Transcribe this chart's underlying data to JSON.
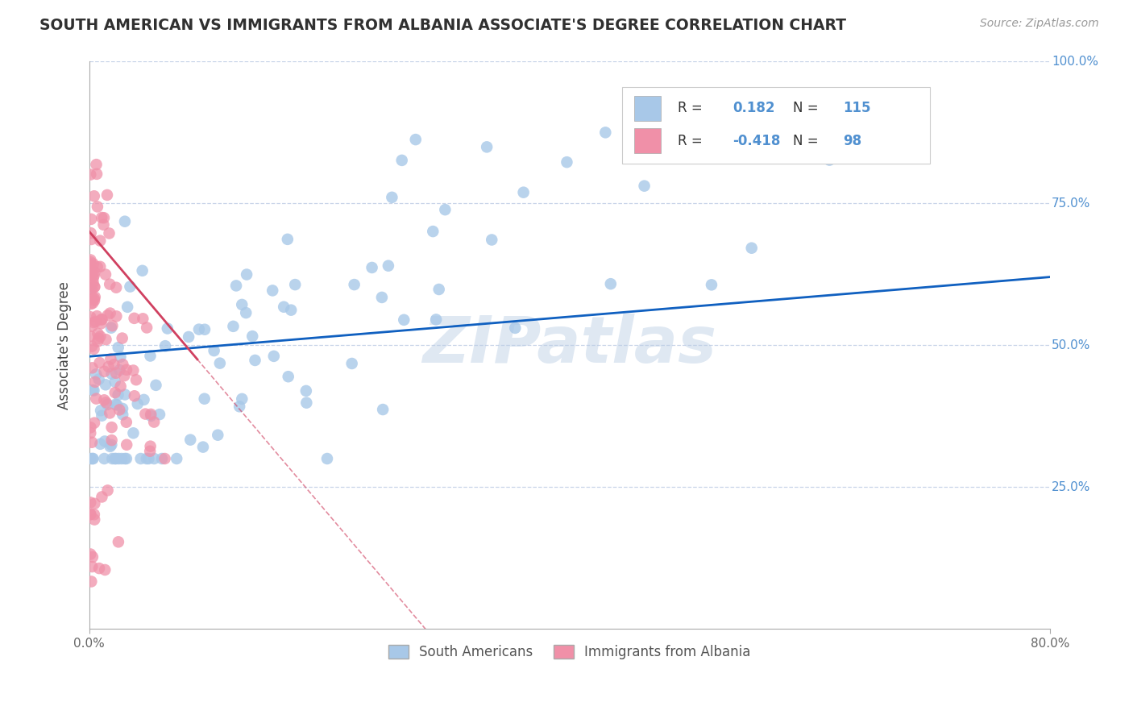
{
  "title": "SOUTH AMERICAN VS IMMIGRANTS FROM ALBANIA ASSOCIATE'S DEGREE CORRELATION CHART",
  "source": "Source: ZipAtlas.com",
  "ylabel": "Associate's Degree",
  "xlim": [
    0.0,
    0.8
  ],
  "ylim": [
    0.0,
    1.0
  ],
  "series1_label": "South Americans",
  "series2_label": "Immigrants from Albania",
  "R1": 0.182,
  "N1": 115,
  "R2": -0.418,
  "N2": 98,
  "dot_color1": "#a8c8e8",
  "dot_color2": "#f090a8",
  "line_color1": "#1060c0",
  "line_color2": "#d04060",
  "tick_color": "#5090d0",
  "watermark": "ZIPatlas",
  "background_color": "#ffffff",
  "grid_color": "#c8d4e8",
  "title_color": "#303030",
  "blue_line_y0": 0.48,
  "blue_line_y1": 0.62,
  "pink_line_y0": 0.7,
  "pink_line_slope": -2.5
}
